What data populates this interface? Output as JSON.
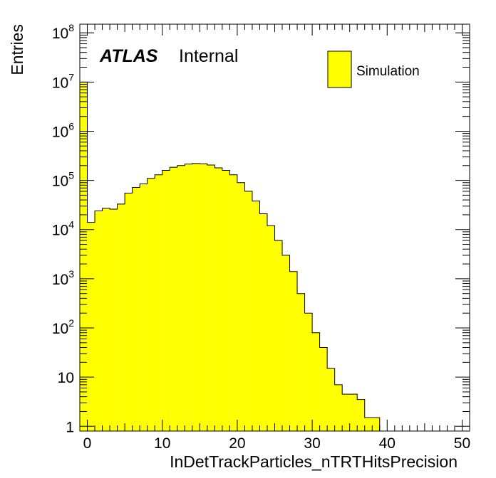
{
  "chart_data": {
    "type": "bar",
    "subtype": "histogram",
    "xlabel": "InDetTrackParticles_nTRTHitsPrecision",
    "ylabel": "Entries",
    "xlim": [
      -1,
      51
    ],
    "ylim": [
      0.8,
      150000000
    ],
    "yscale": "log",
    "grid": false,
    "legend_position": "top-right",
    "atlas_label": "ATLAS",
    "atlas_status": "Internal",
    "fill_color": "#ffff00",
    "line_color": "#000000",
    "bin_width": 1,
    "bin_start": -1,
    "series": [
      {
        "name": "Simulation",
        "values": [
          10000000,
          14000,
          24000,
          27000,
          26000,
          33000,
          55000,
          72000,
          85000,
          110000,
          130000,
          160000,
          185000,
          200000,
          215000,
          220000,
          218000,
          205000,
          180000,
          160000,
          130000,
          90000,
          60000,
          38000,
          21000,
          12000,
          6000,
          3000,
          1400,
          500,
          200,
          80,
          40,
          15,
          7,
          4.5,
          4.5,
          3.5,
          1.5,
          1.5,
          0,
          0,
          0,
          0,
          0,
          0,
          0,
          0,
          0,
          0,
          0,
          0
        ]
      }
    ],
    "x_ticks": [
      "0",
      "10",
      "20",
      "30",
      "40",
      "50"
    ],
    "y_ticks": [
      {
        "base": "1",
        "exp": ""
      },
      {
        "base": "10",
        "exp": ""
      },
      {
        "base": "10",
        "exp": "2"
      },
      {
        "base": "10",
        "exp": "3"
      },
      {
        "base": "10",
        "exp": "4"
      },
      {
        "base": "10",
        "exp": "5"
      },
      {
        "base": "10",
        "exp": "6"
      },
      {
        "base": "10",
        "exp": "7"
      },
      {
        "base": "10",
        "exp": "8"
      }
    ]
  }
}
